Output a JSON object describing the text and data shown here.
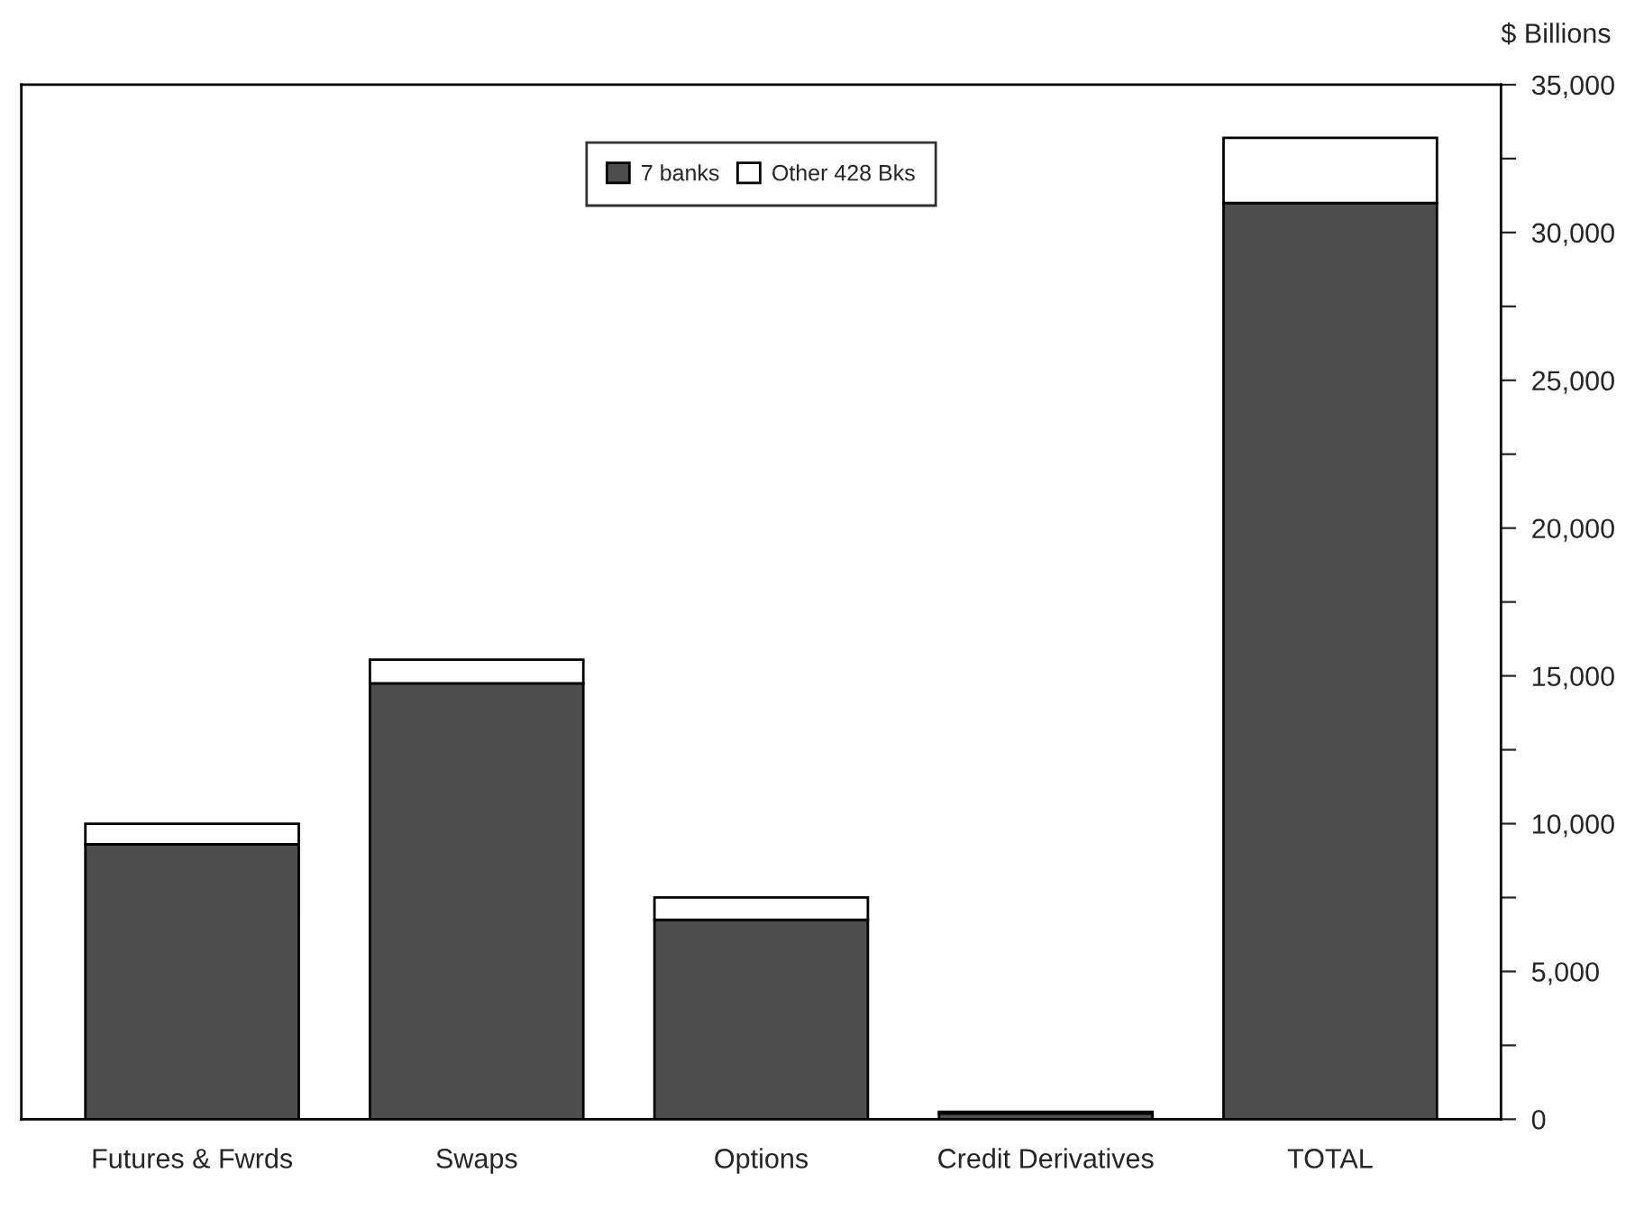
{
  "chart_data": {
    "type": "bar",
    "stacked": true,
    "ylabel": "$ Billions",
    "categories": [
      "Futures & Fwrds",
      "Swaps",
      "Options",
      "Credit Derivatives",
      "TOTAL"
    ],
    "series": [
      {
        "name": "7 banks",
        "color": "#4d4d4d",
        "values": [
          9300,
          14750,
          6750,
          200,
          31000
        ]
      },
      {
        "name": "Other 428 Bks",
        "color": "#ffffff",
        "values": [
          700,
          800,
          750,
          50,
          2200
        ]
      }
    ],
    "ylim": [
      0,
      35000
    ],
    "yticks": [
      {
        "value": 0,
        "label": "0"
      },
      {
        "value": 2500,
        "label": null
      },
      {
        "value": 5000,
        "label": "5,000"
      },
      {
        "value": 7500,
        "label": null
      },
      {
        "value": 10000,
        "label": "10,000"
      },
      {
        "value": 12500,
        "label": null
      },
      {
        "value": 15000,
        "label": "15,000"
      },
      {
        "value": 17500,
        "label": null
      },
      {
        "value": 20000,
        "label": "20,000"
      },
      {
        "value": 22500,
        "label": null
      },
      {
        "value": 25000,
        "label": "25,000"
      },
      {
        "value": 27500,
        "label": null
      },
      {
        "value": 30000,
        "label": "30,000"
      },
      {
        "value": 32500,
        "label": null
      },
      {
        "value": 35000,
        "label": "35,000"
      }
    ],
    "grid": false,
    "legend": "top"
  }
}
